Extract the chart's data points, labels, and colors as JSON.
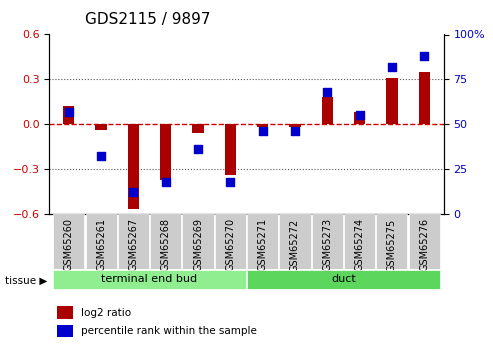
{
  "title": "GDS2115 / 9897",
  "samples": [
    "GSM65260",
    "GSM65261",
    "GSM65267",
    "GSM65268",
    "GSM65269",
    "GSM65270",
    "GSM65271",
    "GSM65272",
    "GSM65273",
    "GSM65274",
    "GSM65275",
    "GSM65276"
  ],
  "log2_ratio": [
    0.12,
    -0.04,
    -0.57,
    -0.37,
    -0.06,
    -0.34,
    -0.02,
    -0.02,
    0.18,
    0.08,
    0.31,
    0.35
  ],
  "percentile_rank": [
    57,
    32,
    12,
    18,
    36,
    18,
    46,
    46,
    68,
    55,
    82,
    88
  ],
  "tissue_groups": [
    {
      "label": "terminal end bud",
      "start": 0,
      "end": 5,
      "color": "#90EE90"
    },
    {
      "label": "duct",
      "start": 6,
      "end": 11,
      "color": "#5CD65C"
    }
  ],
  "ylim": [
    -0.6,
    0.6
  ],
  "yticks_left": [
    -0.6,
    -0.3,
    0.0,
    0.3,
    0.6
  ],
  "yticks_right": [
    0,
    25,
    50,
    75,
    100
  ],
  "bar_color": "#AA0000",
  "dot_color": "#0000CC",
  "zero_line_color": "#CC0000",
  "dotted_line_color": "#555555",
  "background_plot": "#FFFFFF",
  "background_label": "#CCCCCC",
  "label_fontsize": 7,
  "title_fontsize": 11
}
